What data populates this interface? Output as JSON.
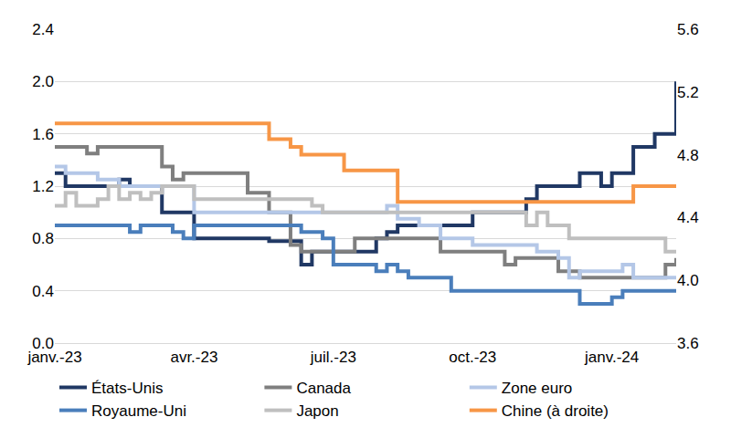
{
  "chart_data": {
    "type": "line",
    "line_style": "step",
    "grid": true,
    "legend": "bottom",
    "categories": [
      "janv.-23",
      null,
      null,
      null,
      null,
      null,
      null,
      null,
      null,
      null,
      null,
      null,
      null,
      "avr.-23",
      null,
      null,
      null,
      null,
      null,
      null,
      null,
      null,
      null,
      null,
      null,
      null,
      "juil.-23",
      null,
      null,
      null,
      null,
      null,
      null,
      null,
      null,
      null,
      null,
      null,
      null,
      "oct.-23",
      null,
      null,
      null,
      null,
      null,
      null,
      null,
      null,
      null,
      null,
      null,
      null,
      "janv.-24",
      null,
      null,
      null,
      null,
      null,
      null
    ],
    "ylim": [
      0,
      2.4
    ],
    "yticks": [
      {
        "value": 0,
        "label": "0.0"
      },
      0.4,
      0.8,
      1.2,
      1.6,
      {
        "value": 2,
        "label": "2.0"
      },
      2.4
    ],
    "y2lim": [
      3.6,
      5.6
    ],
    "y2ticks": [
      3.6,
      {
        "value": 4,
        "label": "4.0"
      },
      4.4,
      4.8,
      5.2,
      5.6
    ],
    "series": [
      {
        "name": "États-Unis",
        "color": "#203864",
        "values": [
          1.3,
          1.2,
          1.2,
          1.2,
          1.2,
          1.2,
          1.25,
          1.2,
          1.2,
          1.2,
          1.0,
          1.0,
          1.0,
          0.8,
          0.8,
          0.8,
          0.8,
          0.8,
          0.8,
          0.8,
          0.78,
          0.78,
          0.78,
          0.6,
          0.7,
          0.7,
          0.7,
          0.7,
          0.7,
          0.7,
          0.8,
          0.85,
          0.9,
          0.9,
          0.9,
          0.9,
          0.9,
          0.9,
          0.9,
          1.0,
          1.0,
          1.0,
          1.0,
          1.0,
          1.1,
          1.2,
          1.2,
          1.2,
          1.2,
          1.3,
          1.3,
          1.2,
          1.3,
          1.3,
          1.5,
          1.5,
          1.6,
          1.6,
          2.0
        ]
      },
      {
        "name": "Canada",
        "color": "#7f7f7f",
        "values": [
          1.5,
          1.5,
          1.5,
          1.45,
          1.5,
          1.5,
          1.5,
          1.5,
          1.5,
          1.5,
          1.35,
          1.25,
          1.3,
          1.3,
          1.3,
          1.3,
          1.3,
          1.3,
          1.15,
          1.15,
          1.0,
          1.0,
          0.75,
          0.7,
          0.7,
          0.7,
          0.7,
          0.7,
          0.8,
          0.8,
          0.8,
          0.8,
          0.8,
          0.8,
          0.8,
          0.8,
          0.7,
          0.7,
          0.7,
          0.7,
          0.7,
          0.7,
          0.6,
          0.65,
          0.65,
          0.65,
          0.65,
          0.55,
          0.55,
          0.5,
          0.5,
          0.5,
          0.5,
          0.5,
          0.5,
          0.5,
          0.5,
          0.6,
          0.65
        ]
      },
      {
        "name": "Zone euro",
        "color": "#b4c7e7",
        "values": [
          1.35,
          1.3,
          1.3,
          1.3,
          1.25,
          1.25,
          1.2,
          1.2,
          1.2,
          1.2,
          1.2,
          1.2,
          1.2,
          1.0,
          1.0,
          1.0,
          1.0,
          1.0,
          1.0,
          1.0,
          1.0,
          1.0,
          1.0,
          1.0,
          1.0,
          1.0,
          1.0,
          1.0,
          1.0,
          1.0,
          1.0,
          1.05,
          0.95,
          0.95,
          0.9,
          0.9,
          0.8,
          0.8,
          0.8,
          0.75,
          0.75,
          0.75,
          0.75,
          0.75,
          0.75,
          0.7,
          0.7,
          0.65,
          0.5,
          0.55,
          0.55,
          0.55,
          0.55,
          0.6,
          0.5,
          0.5,
          0.5,
          0.5,
          0.5
        ]
      },
      {
        "name": "Royaume-Uni",
        "color": "#4a7ebb",
        "values": [
          0.9,
          0.9,
          0.9,
          0.9,
          0.9,
          0.9,
          0.9,
          0.85,
          0.9,
          0.9,
          0.9,
          0.85,
          0.8,
          0.9,
          0.9,
          0.9,
          0.9,
          0.9,
          0.9,
          0.9,
          0.9,
          0.9,
          0.9,
          0.85,
          0.85,
          0.8,
          0.6,
          0.6,
          0.6,
          0.6,
          0.55,
          0.6,
          0.55,
          0.5,
          0.5,
          0.5,
          0.5,
          0.4,
          0.4,
          0.4,
          0.4,
          0.4,
          0.4,
          0.4,
          0.4,
          0.4,
          0.4,
          0.4,
          0.4,
          0.3,
          0.3,
          0.3,
          0.35,
          0.4,
          0.4,
          0.4,
          0.4,
          0.4,
          0.4
        ]
      },
      {
        "name": "Japon",
        "color": "#bfbfbf",
        "values": [
          1.05,
          1.15,
          1.05,
          1.05,
          1.1,
          1.2,
          1.1,
          1.15,
          1.1,
          1.15,
          1.2,
          1.2,
          1.2,
          1.1,
          1.1,
          1.1,
          1.1,
          1.1,
          1.1,
          1.1,
          1.1,
          1.1,
          1.1,
          1.1,
          1.05,
          1.0,
          1.0,
          1.0,
          1.0,
          1.0,
          1.0,
          1.0,
          1.0,
          1.0,
          1.0,
          1.0,
          1.0,
          1.0,
          1.0,
          1.0,
          1.0,
          1.0,
          1.0,
          1.0,
          0.9,
          1.0,
          0.9,
          0.9,
          0.8,
          0.8,
          0.8,
          0.8,
          0.8,
          0.8,
          0.8,
          0.8,
          0.8,
          0.7,
          0.7
        ]
      },
      {
        "name": "Chine (à droite)",
        "color": "#f79646",
        "axis": "y2",
        "values": [
          5.0,
          5.0,
          5.0,
          5.0,
          5.0,
          5.0,
          5.0,
          5.0,
          5.0,
          5.0,
          5.0,
          5.0,
          5.0,
          5.0,
          5.0,
          5.0,
          5.0,
          5.0,
          5.0,
          5.0,
          4.9,
          4.9,
          4.85,
          4.8,
          4.8,
          4.8,
          4.8,
          4.7,
          4.7,
          4.7,
          4.7,
          4.7,
          4.5,
          4.5,
          4.5,
          4.5,
          4.5,
          4.5,
          4.5,
          4.5,
          4.5,
          4.5,
          4.5,
          4.5,
          4.5,
          4.5,
          4.5,
          4.5,
          4.5,
          4.5,
          4.5,
          4.5,
          4.5,
          4.5,
          4.6,
          4.6,
          4.6,
          4.6,
          4.6
        ]
      }
    ]
  }
}
